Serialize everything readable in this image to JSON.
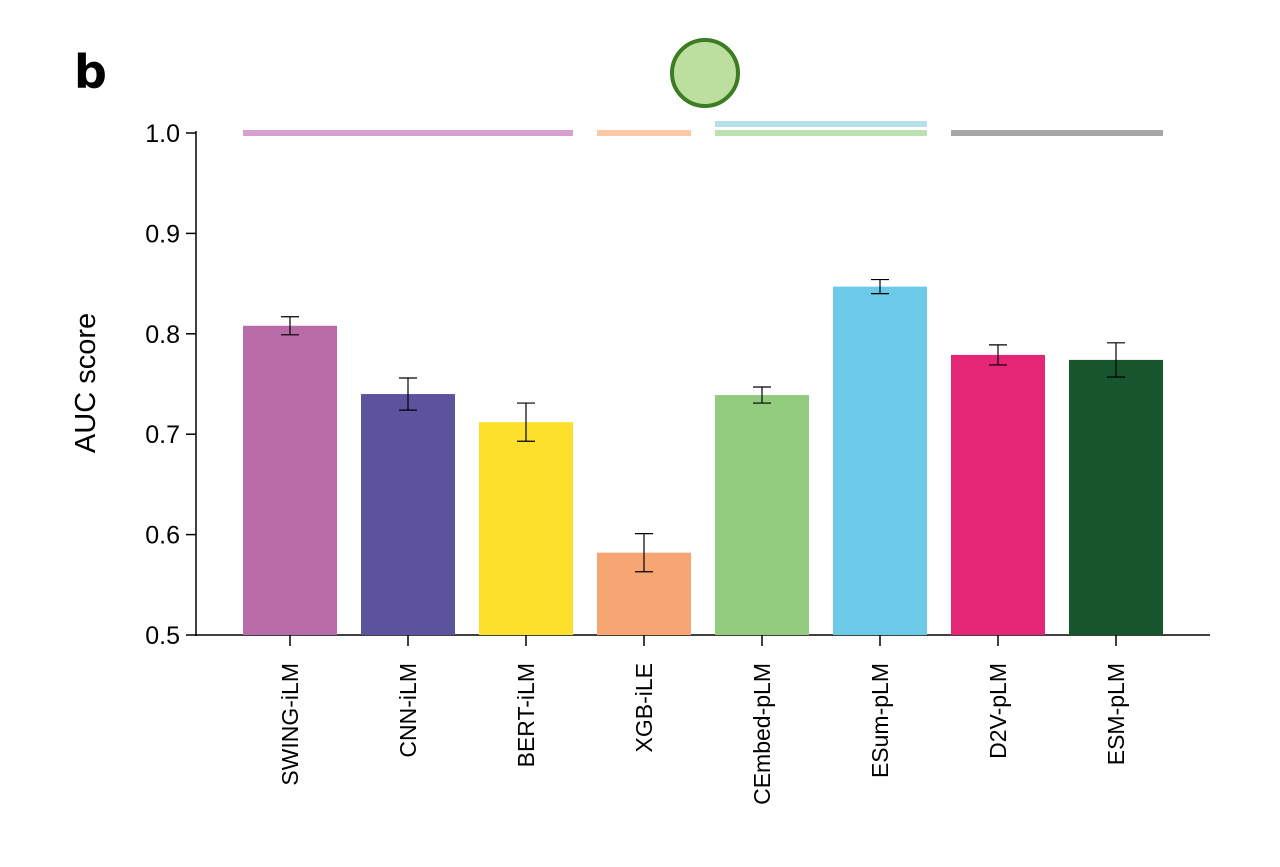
{
  "panel_label": "b",
  "chart_data": {
    "type": "bar",
    "xlabel": "",
    "ylabel": "AUC score",
    "ylim": [
      0.5,
      1.0
    ],
    "yticks": [
      0.5,
      0.6,
      0.7,
      0.8,
      0.9,
      1.0
    ],
    "ytick_labels": [
      "0.5",
      "0.6",
      "0.7",
      "0.8",
      "0.9",
      "1.0"
    ],
    "categories": [
      "SWING-iLM",
      "CNN-iLM",
      "BERT-iLM",
      "XGB-iLE",
      "CEmbed-pLM",
      "ESum-pLM",
      "D2V-pLM",
      "ESM-pLM"
    ],
    "values": [
      0.808,
      0.74,
      0.712,
      0.582,
      0.739,
      0.847,
      0.779,
      0.774
    ],
    "errors": [
      0.009,
      0.016,
      0.019,
      0.019,
      0.008,
      0.007,
      0.01,
      0.017
    ],
    "bar_colors": [
      "#b96ba7",
      "#5b539e",
      "#fde02b",
      "#f7a573",
      "#93cb7e",
      "#6ccae8",
      "#e52575",
      "#17552e"
    ],
    "group_lines": [
      {
        "from": 0,
        "to": 2,
        "colors": [
          "#d4a0cf"
        ]
      },
      {
        "from": 3,
        "to": 3,
        "colors": [
          "#fcc8a6"
        ]
      },
      {
        "from": 4,
        "to": 5,
        "colors": [
          "#b6e0ec",
          "#bde0b0"
        ]
      },
      {
        "from": 6,
        "to": 7,
        "colors": [
          "#a6a6a6"
        ]
      }
    ],
    "marker": {
      "fill": "#bcdf9f",
      "stroke": "#3c7d24"
    },
    "grid": false,
    "legend": "none"
  }
}
